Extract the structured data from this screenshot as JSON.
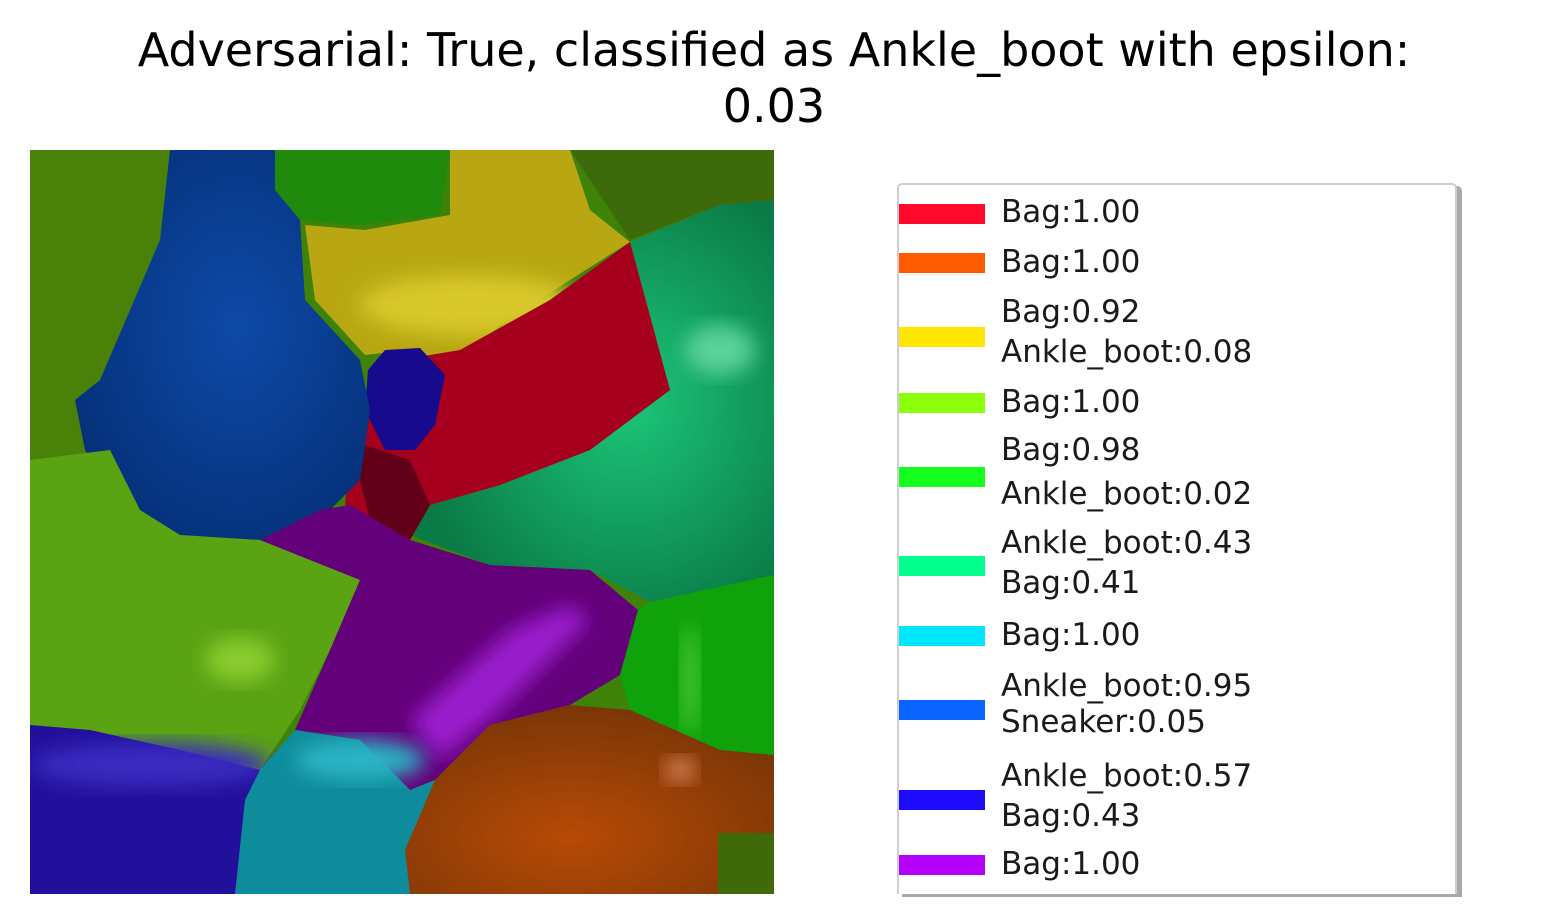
{
  "title": {
    "line1": "Adversarial: True, classified as Ankle_boot with epsilon:",
    "line2": "0.03"
  },
  "legend": [
    {
      "color": "#ff0a2c",
      "lines": [
        "Bag:1.00"
      ]
    },
    {
      "color": "#ff5a00",
      "lines": [
        "Bag:1.00"
      ]
    },
    {
      "color": "#ffe600",
      "lines": [
        "Bag:0.92",
        "Ankle_boot:0.08"
      ]
    },
    {
      "color": "#8cff0a",
      "lines": [
        "Bag:1.00"
      ]
    },
    {
      "color": "#14ff1e",
      "lines": [
        "Bag:0.98",
        "Ankle_boot:0.02"
      ]
    },
    {
      "color": "#00ff8c",
      "lines": [
        "Ankle_boot:0.43",
        "Bag:0.41"
      ]
    },
    {
      "color": "#00e6ff",
      "lines": [
        "Bag:1.00"
      ]
    },
    {
      "color": "#0a64ff",
      "lines": [
        "Ankle_boot:0.95",
        "Sneaker:0.05"
      ]
    },
    {
      "color": "#1e0aff",
      "lines": [
        "Ankle_boot:0.57",
        "Bag:0.43"
      ]
    },
    {
      "color": "#b400ff",
      "lines": [
        "Bag:1.00"
      ]
    }
  ]
}
